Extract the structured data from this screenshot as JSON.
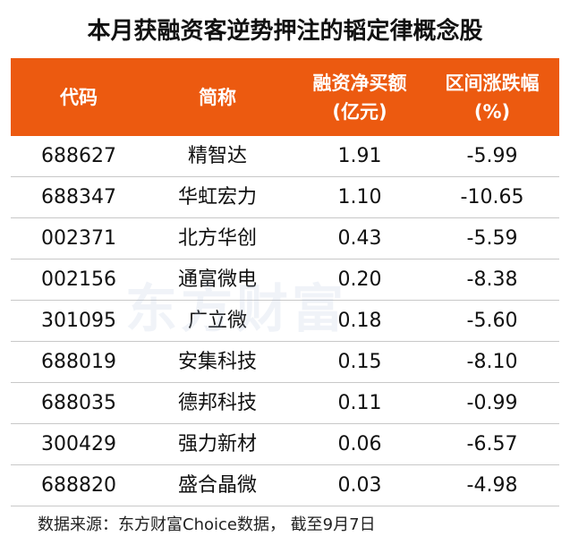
{
  "title": "本月获融资客逆势押注的韬定律概念股",
  "table": {
    "header": [
      [
        "代码"
      ],
      [
        "简称"
      ],
      [
        "融资净买额",
        "(亿元)"
      ],
      [
        "区间涨跌幅",
        "(%)"
      ]
    ],
    "rows": [
      [
        "688627",
        "精智达",
        "1.91",
        "-5.99"
      ],
      [
        "688347",
        "华虹宏力",
        "1.10",
        "-10.65"
      ],
      [
        "002371",
        "北方华创",
        "0.43",
        "-5.59"
      ],
      [
        "002156",
        "通富微电",
        "0.20",
        "-8.38"
      ],
      [
        "301095",
        "广立微",
        "0.18",
        "-5.60"
      ],
      [
        "688019",
        "安集科技",
        "0.15",
        "-8.10"
      ],
      [
        "688035",
        "德邦科技",
        "0.11",
        "-0.99"
      ],
      [
        "300429",
        "强力新材",
        "0.06",
        "-6.57"
      ],
      [
        "688820",
        "盛合晶微",
        "0.03",
        "-4.98"
      ]
    ]
  },
  "watermark": "东方财富",
  "source": "数据来源：东方财富Choice数据， 截至9月7日"
}
